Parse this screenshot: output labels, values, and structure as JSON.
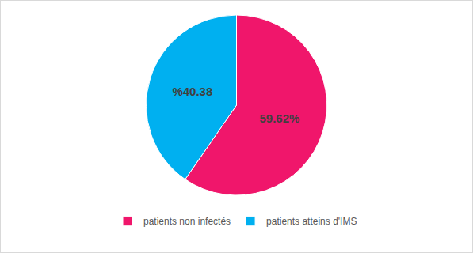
{
  "chart_data": {
    "type": "pie",
    "categories": [
      "patients non infectés",
      "patients atteins d'IMS"
    ],
    "values": [
      59.62,
      40.38
    ],
    "value_labels": [
      "59.62%",
      "%40.38"
    ],
    "colors": [
      "#f0166b",
      "#00b0f0"
    ],
    "data_labels": true,
    "legend": "bottom"
  }
}
